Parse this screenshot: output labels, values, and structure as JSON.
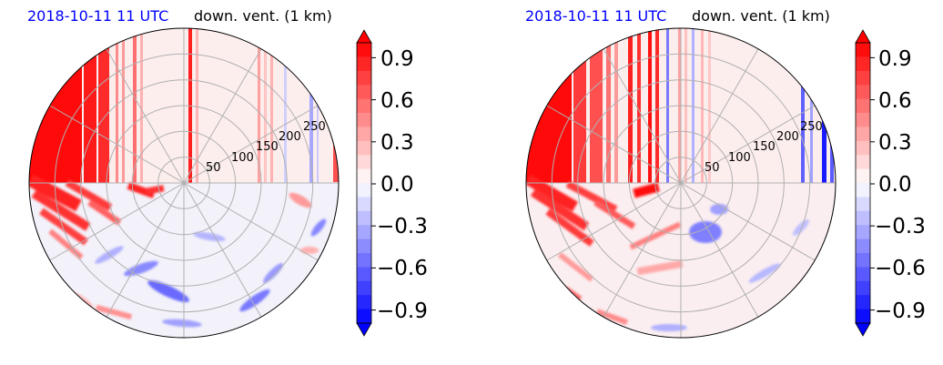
{
  "chart_data": [
    {
      "type": "polar-contourf",
      "title_left": "2018-10-11 11 UTC",
      "title_right": "down. vent. (1 km)",
      "title_left_color": "#0000ff",
      "radial_ticks": [
        "50",
        "100",
        "150",
        "200",
        "250"
      ],
      "radial_tick_values": [
        50,
        100,
        150,
        200,
        250
      ],
      "r_max": 300,
      "colorbar": {
        "ticks": [
          "0.9",
          "0.6",
          "0.3",
          "0.0",
          "−0.3",
          "−0.6",
          "−0.9"
        ],
        "tick_values": [
          0.9,
          0.6,
          0.3,
          0.0,
          -0.3,
          -0.6,
          -0.9
        ],
        "range": [
          -1.0,
          1.0
        ],
        "colormap": "bwr",
        "extend": "both",
        "levels": 20
      },
      "grid": true
    },
    {
      "type": "polar-contourf",
      "title_left": "2018-10-11 11 UTC",
      "title_right": "down. vent. (1 km)",
      "title_left_color": "#0000ff",
      "radial_ticks": [
        "50",
        "100",
        "150",
        "200",
        "250"
      ],
      "radial_tick_values": [
        50,
        100,
        150,
        200,
        250
      ],
      "r_max": 300,
      "colorbar": {
        "ticks": [
          "0.9",
          "0.6",
          "0.3",
          "0.0",
          "−0.3",
          "−0.6",
          "−0.9"
        ],
        "tick_values": [
          0.9,
          0.6,
          0.3,
          0.0,
          -0.3,
          -0.6,
          -0.9
        ],
        "range": [
          -1.0,
          1.0
        ],
        "colormap": "bwr",
        "extend": "both",
        "levels": 20
      },
      "grid": true
    }
  ]
}
